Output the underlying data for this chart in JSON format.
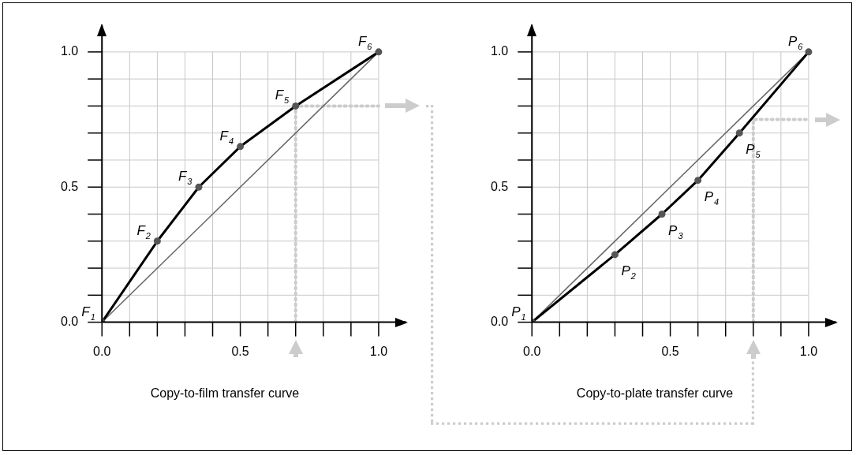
{
  "chart_data": [
    {
      "type": "line",
      "title": "Copy-to-film transfer curve",
      "xlim": [
        0,
        1.1
      ],
      "ylim": [
        0,
        1.1
      ],
      "xticks": [
        "0.0",
        {
          "value": 0.1,
          "label": null
        },
        {
          "value": 0.2,
          "label": null
        },
        {
          "value": 0.3,
          "label": null
        },
        {
          "value": 0.4,
          "label": null
        },
        {
          "value": 0.5,
          "label": "0.5"
        },
        {
          "value": 0.6,
          "label": null
        },
        {
          "value": 0.7,
          "label": null
        },
        {
          "value": 0.8,
          "label": null
        },
        {
          "value": 0.9,
          "label": null
        },
        {
          "value": 1,
          "label": "1.0"
        }
      ],
      "yticks": [
        {
          "value": 0,
          "label": "0.0"
        },
        {
          "value": 0.1,
          "label": null
        },
        {
          "value": 0.2,
          "label": null
        },
        {
          "value": 0.3,
          "label": null
        },
        {
          "value": 0.4,
          "label": null
        },
        {
          "value": 0.5,
          "label": "0.5"
        },
        {
          "value": 0.6,
          "label": null
        },
        {
          "value": 0.7,
          "label": null
        },
        {
          "value": 0.8,
          "label": null
        },
        {
          "value": 0.9,
          "label": null
        },
        {
          "value": 1,
          "label": "1.0"
        }
      ],
      "grid": true,
      "legend": false,
      "series": [
        {
          "color": "#000000",
          "marker": "circle",
          "line_style": "solid",
          "x": [
            0,
            0.2,
            0.35,
            0.5,
            0.7,
            1
          ],
          "values": [
            0,
            0.3,
            0.5,
            0.65,
            0.8,
            1
          ]
        },
        {
          "color": "#666666",
          "marker": "none",
          "line_style": "solid",
          "x": [
            0,
            1
          ],
          "values": [
            0,
            1
          ]
        },
        {
          "color": "#cccccc",
          "marker": "none",
          "line_style": "dotted",
          "x": [
            0.7,
            0.7,
            1
          ],
          "values": [
            0,
            0.8,
            0.8
          ]
        }
      ],
      "annotations": [
        {
          "text": "F$_{1}$",
          "x": 0,
          "y": 0
        },
        {
          "text": "F$_{2}$",
          "x": 0.2,
          "y": 0.3
        },
        {
          "text": "F$_{3}$",
          "x": 0.35,
          "y": 0.5
        },
        {
          "text": "F$_{4}$",
          "x": 0.5,
          "y": 0.65
        },
        {
          "text": "F$_{5}$",
          "x": 0.7,
          "y": 0.8
        },
        {
          "text": "F$_{6}$",
          "x": 1,
          "y": 1
        }
      ]
    },
    {
      "type": "line",
      "title": "Copy-to-plate transfer curve",
      "xlim": [
        0,
        1.1
      ],
      "ylim": [
        0,
        1.1
      ],
      "xticks": [
        {
          "value": 0,
          "label": "0.0"
        },
        {
          "value": 0.1,
          "label": null
        },
        {
          "value": 0.2,
          "label": null
        },
        {
          "value": 0.3,
          "label": null
        },
        {
          "value": 0.4,
          "label": null
        },
        {
          "value": 0.5,
          "label": "0.5"
        },
        {
          "value": 0.6,
          "label": null
        },
        {
          "value": 0.7,
          "label": null
        },
        {
          "value": 0.8,
          "label": null
        },
        {
          "value": 0.9,
          "label": null
        },
        {
          "value": 1,
          "label": "1.0"
        }
      ],
      "yticks": [
        {
          "value": 0,
          "label": "0.0"
        },
        {
          "value": 0.1,
          "label": null
        },
        {
          "value": 0.2,
          "label": null
        },
        {
          "value": 0.3,
          "label": null
        },
        {
          "value": 0.4,
          "label": null
        },
        {
          "value": 0.5,
          "label": "0.5"
        },
        {
          "value": 0.6,
          "label": null
        },
        {
          "value": 0.7,
          "label": null
        },
        {
          "value": 0.8,
          "label": null
        },
        {
          "value": 0.9,
          "label": null
        },
        {
          "value": 1,
          "label": "1.0"
        }
      ],
      "grid": true,
      "legend": false,
      "series": [
        {
          "color": "#000000",
          "marker": "circle",
          "line_style": "solid",
          "x": [
            0,
            0.3,
            0.47,
            0.6,
            0.75,
            1
          ],
          "values": [
            0,
            0.25,
            0.4,
            0.525,
            0.7,
            1
          ]
        },
        {
          "color": "#666666",
          "marker": "none",
          "line_style": "solid",
          "x": [
            0,
            1
          ],
          "values": [
            0,
            1
          ]
        },
        {
          "color": "#cccccc",
          "marker": "none",
          "line_style": "dotted",
          "x": [
            0.8,
            0.8,
            1
          ],
          "values": [
            0,
            0.75,
            0.75
          ]
        }
      ],
      "annotations": [
        {
          "text": "P$_{1}$",
          "x": 0,
          "y": 0
        },
        {
          "text": "P$_{2}$",
          "x": 0.3,
          "y": 0.25
        },
        {
          "text": "P$_{3}$",
          "x": 0.47,
          "y": 0.4
        },
        {
          "text": "P$_{4}$",
          "x": 0.6,
          "y": 0.525
        },
        {
          "text": "P$_{5}$",
          "x": 0.75,
          "y": 0.7
        },
        {
          "text": "P$_{6}$",
          "x": 1,
          "y": 1
        }
      ]
    }
  ]
}
